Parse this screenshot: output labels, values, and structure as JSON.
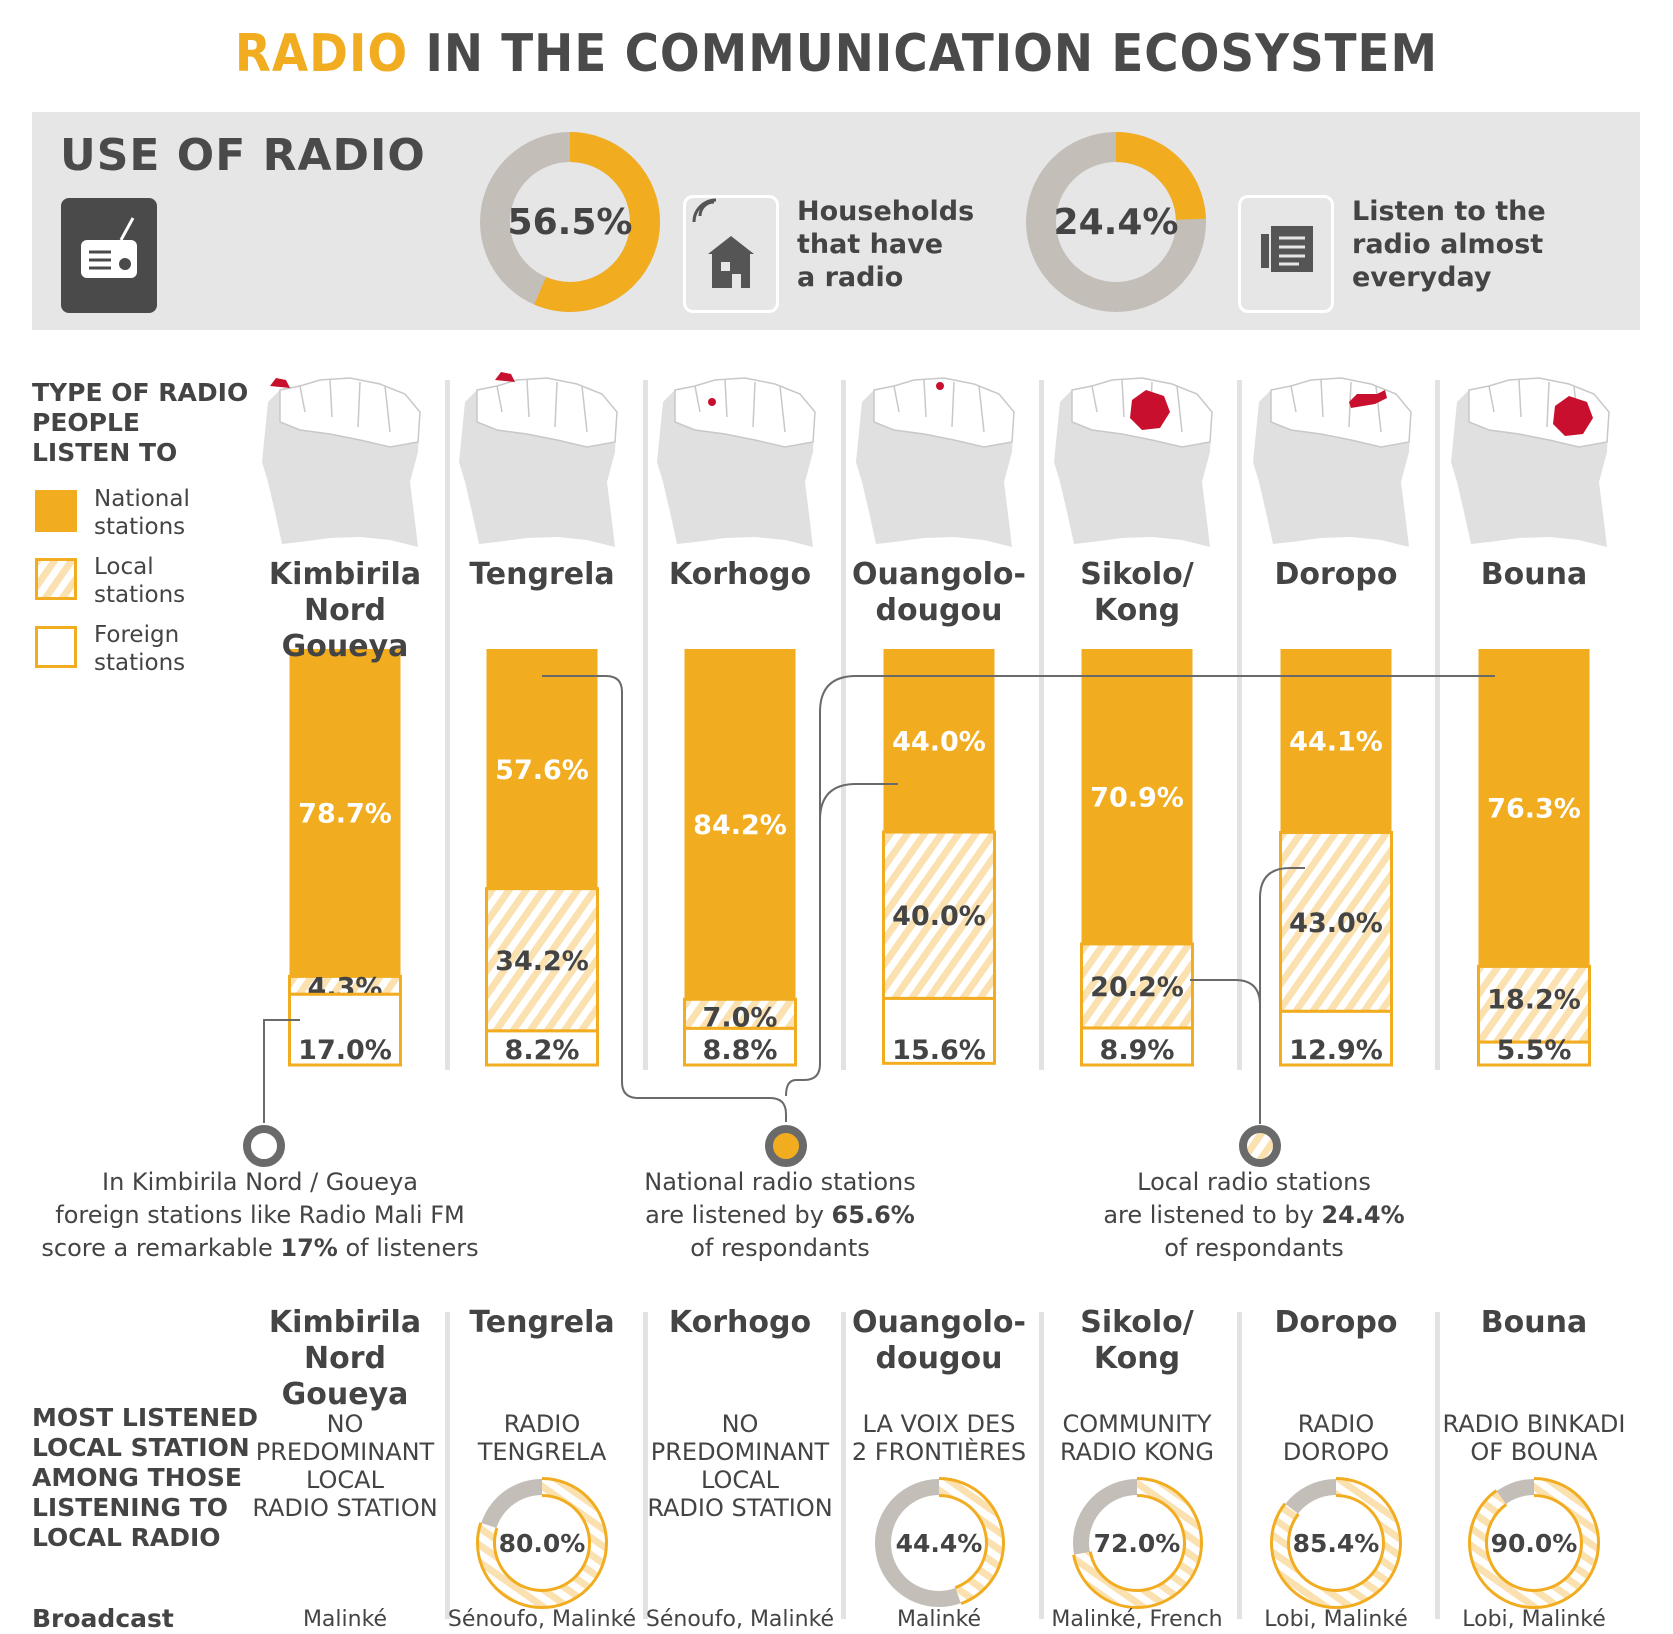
{
  "title": {
    "accent": "RADIO",
    "rest": "IN THE COMMUNICATION ECOSYSTEM"
  },
  "colors": {
    "national": "#f1ac20",
    "grey": "#c4beb8",
    "dark": "#4a4a4a",
    "map": "#e0e0e0",
    "highlight": "#c8102e"
  },
  "use_of_radio": {
    "heading": "USE OF RADIO",
    "icon": "radio-icon",
    "stats": [
      {
        "value": 56.5,
        "label": "56.5%",
        "text": "Households that have a radio",
        "lines": [
          "Households",
          "that have",
          "a radio"
        ],
        "icon": "house-icon"
      },
      {
        "value": 24.4,
        "label": "24.4%",
        "text": "Listen to the radio almost everyday",
        "lines": [
          "Listen to the",
          "radio almost",
          "everyday"
        ],
        "icon": "newspaper-icon"
      }
    ]
  },
  "type_section": {
    "heading_lines": [
      "TYPE OF RADIO",
      "PEOPLE",
      "LISTEN TO"
    ],
    "legend": [
      {
        "key": "national",
        "lines": [
          "National",
          "stations"
        ]
      },
      {
        "key": "local",
        "lines": [
          "Local",
          "stations"
        ]
      },
      {
        "key": "foreign",
        "lines": [
          "Foreign",
          "stations"
        ]
      }
    ]
  },
  "chart_data": {
    "type": "bar",
    "stacked": true,
    "categories": [
      "Kimbirila Nord Goueya",
      "Tengrela",
      "Korhogo",
      "Ouangolo-dougou",
      "Sikolo/ Kong",
      "Doropo",
      "Bouna"
    ],
    "category_lines": [
      [
        "Kimbirila Nord",
        "Goueya"
      ],
      [
        "Tengrela"
      ],
      [
        "Korhogo"
      ],
      [
        "Ouangolo-",
        "dougou"
      ],
      [
        "Sikolo/",
        "Kong"
      ],
      [
        "Doropo"
      ],
      [
        "Bouna"
      ]
    ],
    "series": [
      {
        "name": "National stations",
        "values": [
          78.7,
          57.6,
          84.2,
          44.0,
          70.9,
          44.1,
          76.3
        ],
        "labels": [
          "78.7%",
          "57.6%",
          "84.2%",
          "44.0%",
          "70.9%",
          "44.1%",
          "76.3%"
        ]
      },
      {
        "name": "Local stations",
        "values": [
          4.3,
          34.2,
          7.0,
          40.0,
          20.2,
          43.0,
          18.2
        ],
        "labels": [
          "4.3%",
          "34.2%",
          "7.0%",
          "40.0%",
          "20.2%",
          "43.0%",
          "18.2%"
        ]
      },
      {
        "name": "Foreign stations",
        "values": [
          17.0,
          8.2,
          8.8,
          15.6,
          8.9,
          12.9,
          5.5
        ],
        "labels": [
          "17.0%",
          "8.2%",
          "8.8%",
          "15.6%",
          "8.9%",
          "12.9%",
          "5.5%"
        ]
      }
    ],
    "ylim": [
      0,
      100
    ]
  },
  "callouts": [
    {
      "lines": [
        "In Kimbirila Nord / Goueya",
        "foreign stations like Radio Mali FM",
        "score a remarkable "
      ],
      "bold": "17%",
      "tail": " of listeners"
    },
    {
      "lines": [
        "National radio stations",
        "are listened by "
      ],
      "bold": "65.6%",
      "tail": "of respondants"
    },
    {
      "lines": [
        "Local radio stations",
        "are listened to by "
      ],
      "bold": "24.4%",
      "tail": "of respondants"
    }
  ],
  "local_section": {
    "heading_lines": [
      "MOST LISTENED",
      "LOCAL STATION",
      "AMONG THOSE",
      "LISTENING TO",
      "LOCAL RADIO"
    ],
    "towns": [
      [
        "Kimbirila Nord",
        "Goueya"
      ],
      [
        "Tengrela"
      ],
      [
        "Korhogo"
      ],
      [
        "Ouangolo-",
        "dougou"
      ],
      [
        "Sikolo/",
        "Kong"
      ],
      [
        "Doropo"
      ],
      [
        "Bouna"
      ]
    ],
    "stations": [
      {
        "lines": [
          "NO",
          "PREDOMINANT",
          "LOCAL",
          "RADIO STATION"
        ],
        "share": null,
        "label": ""
      },
      {
        "lines": [
          "RADIO",
          "TENGRELA"
        ],
        "share": 80.0,
        "label": "80.0%"
      },
      {
        "lines": [
          "NO",
          "PREDOMINANT",
          "LOCAL",
          "RADIO STATION"
        ],
        "share": null,
        "label": ""
      },
      {
        "lines": [
          "LA VOIX DES",
          "2 FRONTIÈRES"
        ],
        "share": 44.4,
        "label": "44.4%"
      },
      {
        "lines": [
          "COMMUNITY",
          "RADIO KONG"
        ],
        "share": 72.0,
        "label": "72.0%"
      },
      {
        "lines": [
          "RADIO",
          "DOROPO"
        ],
        "share": 85.4,
        "label": "85.4%"
      },
      {
        "lines": [
          "RADIO BINKADI",
          "OF BOUNA"
        ],
        "share": 90.0,
        "label": "90.0%"
      }
    ],
    "broadcast_label": "Broadcast",
    "languages": [
      "Malinké",
      "Sénoufo, Malinké",
      "Sénoufo, Malinké",
      "Malinké",
      "Malinké, French",
      "Lobi, Malinké",
      "Lobi, Malinké"
    ]
  }
}
